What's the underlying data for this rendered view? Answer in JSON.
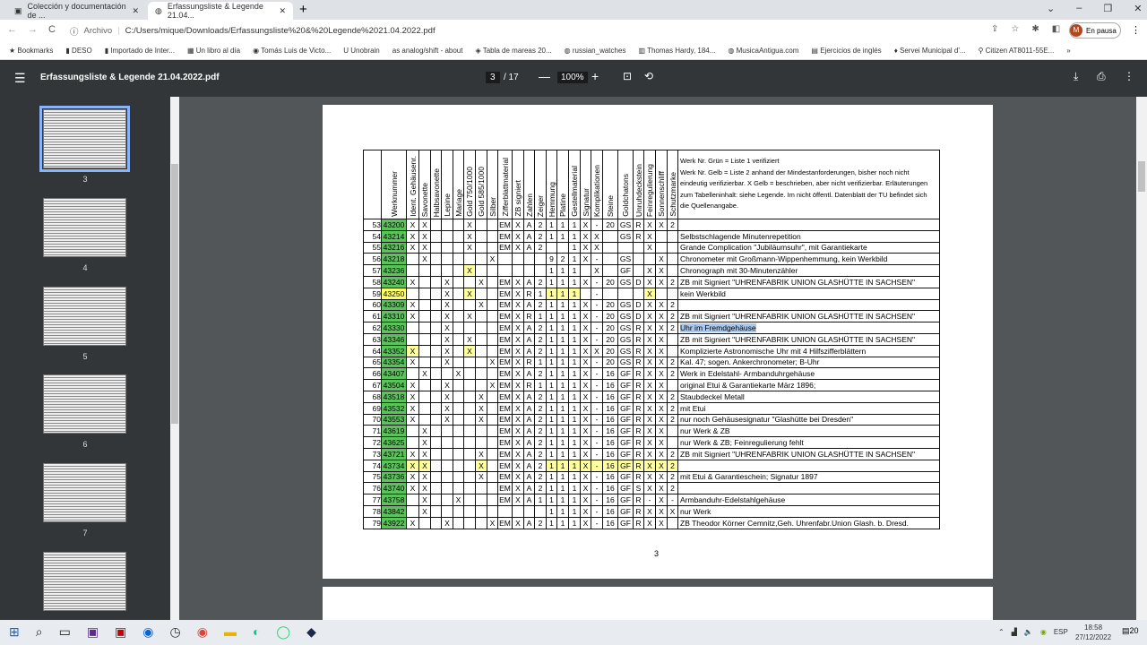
{
  "browser": {
    "tabs": [
      {
        "label": "Colección y documentación de ...",
        "active": false
      },
      {
        "label": "Erfassungsliste & Legende 21.04...",
        "active": true
      }
    ],
    "address_prefix": "Archivo",
    "url": "C:/Users/mique/Downloads/Erfassungsliste%20&%20Legende%2021.04.2022.pdf",
    "profile_status": "En pausa",
    "profile_initial": "M",
    "bookmarks": [
      "Bookmarks",
      "DESO",
      "Importado de Inter...",
      "Un libro al día",
      "Tomás Luis de Victo...",
      "Unobrain",
      "analog/shift - about",
      "Tabla de mareas 20...",
      "russian_watches",
      "Thomas Hardy, 184...",
      "MusicaAntigua.com",
      "Ejercicios de inglés",
      "Servei Municipal d'...",
      "Citizen AT8011-55E..."
    ]
  },
  "pdf": {
    "title": "Erfassungsliste & Legende 21.04.2022.pdf",
    "page": "3",
    "total": "/ 17",
    "zoom": "100%",
    "page_number_footer": "3",
    "thumbnails": [
      "3",
      "4",
      "5",
      "6",
      "7"
    ]
  },
  "table": {
    "headers": [
      "Werknummer",
      "Ident. Gehäusenr.",
      "Savonette",
      "Halbsavonette",
      "Lepine",
      "Mariage",
      "Gold 750/1000",
      "Gold 585/1000",
      "Silber",
      "Zifferblattmaterial",
      "ZB signiert",
      "Zahlen",
      "Zeiger",
      "Hemmung",
      "Platine",
      "Gestellmaterial",
      "Signatur",
      "Komplikationen",
      "Steine",
      "Goldchatons",
      "Unruhdeckstein",
      "Feinregulierung",
      "Sonnenschliff",
      "Schutzmarke"
    ],
    "legend": "Werk Nr. Grün = Liste 1 verifiziert\nWerk Nr. Gelb = Liste 2 anhand der Mindestanforderungen, bisher noch nicht eindeutig verifizierbar.                     X Gelb = beschrieben, aber nicht verifizierbar. Erläuterungen zum Tabelleninhalt: siehe Legende. Im nicht öffentl. Datenblatt der TU befindet sich die Quellenangabe.",
    "colors": {
      "verified": "#5cc25c",
      "unverified": "#ffff66",
      "described": "#ffffa0"
    },
    "rows": [
      {
        "n": "53",
        "werk": "43200",
        "status": "green",
        "cells": [
          "X",
          "X",
          "",
          "",
          "",
          "X",
          "",
          "",
          "EM",
          "X",
          "A",
          "2",
          "1",
          "1",
          "1",
          "X",
          "-",
          "20",
          "GS",
          "R",
          "X",
          "X",
          "2"
        ],
        "hl": [],
        "remark": ""
      },
      {
        "n": "54",
        "werk": "43214",
        "status": "green",
        "cells": [
          "X",
          "X",
          "",
          "",
          "",
          "X",
          "",
          "",
          "EM",
          "X",
          "A",
          "2",
          "1",
          "1",
          "1",
          "X",
          "X",
          "",
          "GS",
          "R",
          "X",
          "",
          ""
        ],
        "hl": [],
        "remark": "Selbstschlagende Minutenrepetition"
      },
      {
        "n": "55",
        "werk": "43216",
        "status": "green",
        "cells": [
          "X",
          "X",
          "",
          "",
          "",
          "X",
          "",
          "",
          "EM",
          "X",
          "A",
          "2",
          "",
          "",
          "1",
          "X",
          "X",
          "",
          "",
          "",
          "X",
          "",
          ""
        ],
        "hl": [],
        "remark": "Grande Complication \"Jubiläumsuhr\", mit Garantiekarte"
      },
      {
        "n": "56",
        "werk": "43218",
        "status": "green",
        "cells": [
          "",
          "X",
          "",
          "",
          "",
          "",
          "",
          "X",
          "",
          "",
          "",
          "",
          "9",
          "2",
          "1",
          "X",
          "-",
          "",
          "GS",
          "",
          "",
          "X",
          ""
        ],
        "hl": [],
        "remark": "Chronometer mit Großmann-Wippenhemmung,  kein Werkbild"
      },
      {
        "n": "57",
        "werk": "43236",
        "status": "green",
        "cells": [
          "",
          "",
          "",
          "",
          "",
          "X",
          "",
          "",
          "",
          "",
          "",
          "",
          "1",
          "1",
          "1",
          "",
          "X",
          "",
          "GF",
          "",
          "X",
          "X",
          ""
        ],
        "hl": [
          5
        ],
        "remark": "Chronograph mit 30-Minutenzähler"
      },
      {
        "n": "58",
        "werk": "43240",
        "status": "green",
        "cells": [
          "X",
          "",
          "",
          "X",
          "",
          "",
          "X",
          "",
          "EM",
          "X",
          "A",
          "2",
          "1",
          "1",
          "1",
          "X",
          "-",
          "20",
          "GS",
          "D",
          "X",
          "X",
          "2"
        ],
        "hl": [],
        "remark": "ZB mit Signiert  \"UHRENFABRIK UNION GLASHÜTTE IN SACHSEN\""
      },
      {
        "n": "59",
        "werk": "43250",
        "status": "yellow",
        "cells": [
          "",
          "",
          "",
          "X",
          "",
          "X",
          "",
          "",
          "EM",
          "X",
          "R",
          "1",
          "1",
          "1",
          "1",
          "",
          "-",
          "",
          "",
          "",
          "X",
          "",
          ""
        ],
        "hl": [
          5,
          12,
          13,
          14,
          20
        ],
        "remark": "kein Werkbild"
      },
      {
        "n": "60",
        "werk": "43309",
        "status": "green",
        "cells": [
          "X",
          "",
          "",
          "X",
          "",
          "",
          "X",
          "",
          "EM",
          "X",
          "A",
          "2",
          "1",
          "1",
          "1",
          "X",
          "-",
          "20",
          "GS",
          "D",
          "X",
          "X",
          "2"
        ],
        "hl": [],
        "remark": ""
      },
      {
        "n": "61",
        "werk": "43310",
        "status": "green",
        "cells": [
          "X",
          "",
          "",
          "X",
          "",
          "X",
          "",
          "",
          "EM",
          "X",
          "R",
          "1",
          "1",
          "1",
          "1",
          "X",
          "-",
          "20",
          "GS",
          "D",
          "X",
          "X",
          "2"
        ],
        "hl": [],
        "remark": "ZB mit Signiert  \"UHRENFABRIK UNION GLASHÜTTE IN SACHSEN\""
      },
      {
        "n": "62",
        "werk": "43330",
        "status": "green",
        "cells": [
          "",
          "",
          "",
          "X",
          "",
          "",
          "",
          "",
          "EM",
          "X",
          "A",
          "2",
          "1",
          "1",
          "1",
          "X",
          "-",
          "20",
          "GS",
          "R",
          "X",
          "X",
          "2"
        ],
        "hl": [],
        "remark": "Uhr im Fremdgehäuse",
        "selected": true
      },
      {
        "n": "63",
        "werk": "43346",
        "status": "green",
        "cells": [
          "",
          "",
          "",
          "X",
          "",
          "X",
          "",
          "",
          "EM",
          "X",
          "A",
          "2",
          "1",
          "1",
          "1",
          "X",
          "-",
          "20",
          "GS",
          "R",
          "X",
          "X",
          ""
        ],
        "hl": [],
        "remark": "ZB mit Signiert  \"UHRENFABRIK UNION GLASHÜTTE IN SACHSEN\""
      },
      {
        "n": "64",
        "werk": "43352",
        "status": "green",
        "cells": [
          "X",
          "",
          "",
          "X",
          "",
          "X",
          "",
          "",
          "EM",
          "X",
          "A",
          "2",
          "1",
          "1",
          "1",
          "X",
          "X",
          "20",
          "GS",
          "R",
          "X",
          "X",
          ""
        ],
        "hl": [
          0,
          5
        ],
        "remark": "Komplizierte Astronomische Uhr mit 4 Hilfszifferblättern"
      },
      {
        "n": "65",
        "werk": "43354",
        "status": "green",
        "cells": [
          "X",
          "",
          "",
          "X",
          "",
          "",
          "",
          "X",
          "EM",
          "X",
          "R",
          "1",
          "1",
          "1",
          "1",
          "X",
          "-",
          "20",
          "GS",
          "R",
          "X",
          "X",
          "2"
        ],
        "hl": [],
        "remark": "Kal. 47; sogen. Ankerchronometer; B-Uhr"
      },
      {
        "n": "66",
        "werk": "43407",
        "status": "green",
        "cells": [
          "",
          "X",
          "",
          "",
          "X",
          "",
          "",
          "",
          "EM",
          "X",
          "A",
          "2",
          "1",
          "1",
          "1",
          "X",
          "-",
          "16",
          "GF",
          "R",
          "X",
          "X",
          "2"
        ],
        "hl": [],
        "remark": "Werk in Edelstahl- Armbanduhrgehäuse"
      },
      {
        "n": "67",
        "werk": "43504",
        "status": "green",
        "cells": [
          "X",
          "",
          "",
          "X",
          "",
          "",
          "",
          "X",
          "EM",
          "X",
          "R",
          "1",
          "1",
          "1",
          "1",
          "X",
          "-",
          "16",
          "GF",
          "R",
          "X",
          "X",
          ""
        ],
        "hl": [],
        "remark": "original Etui & Garantiekarte März 1896;"
      },
      {
        "n": "68",
        "werk": "43518",
        "status": "green",
        "cells": [
          "X",
          "",
          "",
          "X",
          "",
          "",
          "X",
          "",
          "EM",
          "X",
          "A",
          "2",
          "1",
          "1",
          "1",
          "X",
          "-",
          "16",
          "GF",
          "R",
          "X",
          "X",
          "2"
        ],
        "hl": [],
        "remark": "Staubdeckel Metall"
      },
      {
        "n": "69",
        "werk": "43532",
        "status": "green",
        "cells": [
          "X",
          "",
          "",
          "X",
          "",
          "",
          "X",
          "",
          "EM",
          "X",
          "A",
          "2",
          "1",
          "1",
          "1",
          "X",
          "-",
          "16",
          "GF",
          "R",
          "X",
          "X",
          "2"
        ],
        "hl": [],
        "remark": "mit Etui"
      },
      {
        "n": "70",
        "werk": "43553",
        "status": "green",
        "cells": [
          "X",
          "",
          "",
          "X",
          "",
          "",
          "X",
          "",
          "EM",
          "X",
          "A",
          "2",
          "1",
          "1",
          "1",
          "X",
          "-",
          "16",
          "GF",
          "R",
          "X",
          "X",
          "2"
        ],
        "hl": [],
        "remark": "nur noch Gehäusesignatur \"Glashütte bei Dresden\""
      },
      {
        "n": "71",
        "werk": "43619",
        "status": "green",
        "cells": [
          "",
          "X",
          "",
          "",
          "",
          "",
          "",
          "",
          "EM",
          "X",
          "A",
          "2",
          "1",
          "1",
          "1",
          "X",
          "-",
          "16",
          "GF",
          "R",
          "X",
          "X",
          ""
        ],
        "hl": [],
        "remark": "nur Werk & ZB"
      },
      {
        "n": "72",
        "werk": "43625",
        "status": "green",
        "cells": [
          "",
          "X",
          "",
          "",
          "",
          "",
          "",
          "",
          "EM",
          "X",
          "A",
          "2",
          "1",
          "1",
          "1",
          "X",
          "-",
          "16",
          "GF",
          "R",
          "X",
          "X",
          ""
        ],
        "hl": [],
        "remark": "nur Werk & ZB; Feinregulierung fehlt"
      },
      {
        "n": "73",
        "werk": "43721",
        "status": "green",
        "cells": [
          "X",
          "X",
          "",
          "",
          "",
          "",
          "X",
          "",
          "EM",
          "X",
          "A",
          "2",
          "1",
          "1",
          "1",
          "X",
          "-",
          "16",
          "GF",
          "R",
          "X",
          "X",
          "2"
        ],
        "hl": [],
        "remark": "ZB mit Signiert  \"UHRENFABRIK UNION GLASHÜTTE IN SACHSEN\""
      },
      {
        "n": "74",
        "werk": "43734",
        "status": "green",
        "cells": [
          "X",
          "X",
          "",
          "",
          "",
          "",
          "X",
          "",
          "EM",
          "X",
          "A",
          "2",
          "1",
          "1",
          "1",
          "X",
          "-",
          "16",
          "GF",
          "R",
          "X",
          "X",
          "2"
        ],
        "hl": [
          0,
          1,
          6,
          12,
          13,
          14,
          15,
          16,
          17,
          18,
          19,
          20,
          21,
          22
        ],
        "remark": ""
      },
      {
        "n": "75",
        "werk": "43736",
        "status": "green",
        "cells": [
          "X",
          "X",
          "",
          "",
          "",
          "",
          "X",
          "",
          "EM",
          "X",
          "A",
          "2",
          "1",
          "1",
          "1",
          "X",
          "-",
          "16",
          "GF",
          "R",
          "X",
          "X",
          "2"
        ],
        "hl": [],
        "remark": "mit Etui & Garantieschein; Signatur 1897"
      },
      {
        "n": "76",
        "werk": "43740",
        "status": "green",
        "cells": [
          "X",
          "X",
          "",
          "",
          "",
          "",
          "",
          "",
          "EM",
          "X",
          "A",
          "2",
          "1",
          "1",
          "1",
          "X",
          "-",
          "16",
          "GF",
          "S",
          "X",
          "X",
          "2"
        ],
        "hl": [],
        "remark": ""
      },
      {
        "n": "77",
        "werk": "43758",
        "status": "green",
        "cells": [
          "",
          "X",
          "",
          "",
          "X",
          "",
          "",
          "",
          "EM",
          "X",
          "A",
          "1",
          "1",
          "1",
          "1",
          "X",
          "-",
          "16",
          "GF",
          "R",
          "-",
          "X",
          "-"
        ],
        "hl": [],
        "remark": "Armbanduhr-Edelstahlgehäuse"
      },
      {
        "n": "78",
        "werk": "43842",
        "status": "green",
        "cells": [
          "",
          "X",
          "",
          "",
          "",
          "",
          "",
          "",
          "",
          "",
          "",
          "",
          "1",
          "1",
          "1",
          "X",
          "-",
          "16",
          "GF",
          "R",
          "X",
          "X",
          "X"
        ],
        "hl": [],
        "remark": "nur Werk"
      },
      {
        "n": "79",
        "werk": "43922",
        "status": "green",
        "cells": [
          "X",
          "",
          "",
          "X",
          "",
          "",
          "",
          "X",
          "EM",
          "X",
          "A",
          "2",
          "1",
          "1",
          "1",
          "X",
          "-",
          "16",
          "GF",
          "R",
          "X",
          "X",
          ""
        ],
        "hl": [],
        "remark": "ZB Theodor Körner Cemnitz,Geh. Uhrenfabr.Union Glash. b. Dresd."
      }
    ]
  },
  "taskbar": {
    "lang": "ESP",
    "time": "18:58",
    "date": "27/12/2022",
    "notifications": "20"
  }
}
